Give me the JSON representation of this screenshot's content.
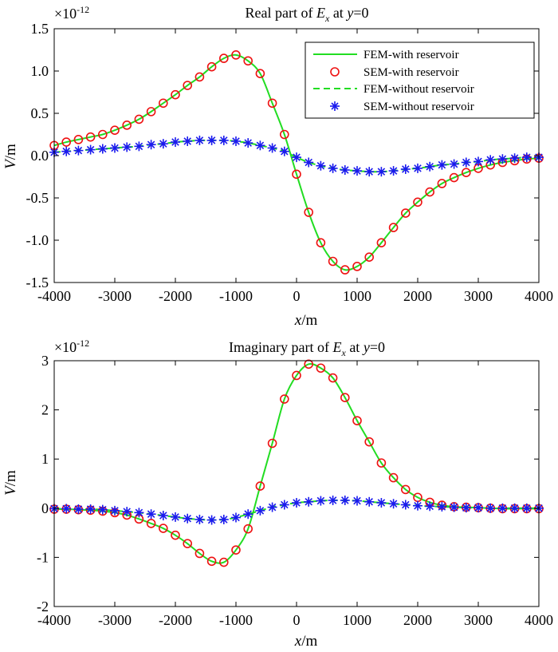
{
  "chart_data": [
    {
      "type": "line",
      "title_parts": {
        "prefix": "Real part of ",
        "var": "E",
        "sub": "x",
        "mid": " at ",
        "yvar": "y",
        "suffix": "=0"
      },
      "exponent": {
        "base": "×10",
        "power": "-12"
      },
      "xlabel_parts": {
        "var": "x",
        "unit": "/m"
      },
      "ylabel_parts": {
        "var": "V",
        "unit": "/m"
      },
      "xlim": [
        -4000,
        4000
      ],
      "ylim": [
        -1.5,
        1.5
      ],
      "xticks": [
        -4000,
        -3000,
        -2000,
        -1000,
        0,
        1000,
        2000,
        3000,
        4000
      ],
      "xtick_labels": [
        "-4000",
        "-3000",
        "-2000",
        "-1000",
        "0",
        "1000",
        "2000",
        "3000",
        "4000"
      ],
      "yticks": [
        -1.5,
        -1.0,
        -0.5,
        0.0,
        0.5,
        1.0,
        1.5
      ],
      "ytick_labels": [
        "-1.5",
        "-1.0",
        "-0.5",
        "0.0",
        "0.5",
        "1.0",
        "1.5"
      ],
      "legend": {
        "placement": "top-right",
        "entries": [
          {
            "label": "FEM-with reservoir",
            "style": "solid-line",
            "color": "#22dd22"
          },
          {
            "label": "SEM-with reservoir",
            "style": "circle",
            "color": "#ee1111"
          },
          {
            "label": "FEM-without reservoir",
            "style": "dashed-line",
            "color": "#22dd22"
          },
          {
            "label": "SEM-without reservoir",
            "style": "asterisk",
            "color": "#1a1aee"
          }
        ]
      },
      "series": [
        {
          "name": "SEM-with reservoir",
          "x": [
            -4000,
            -3800,
            -3600,
            -3400,
            -3200,
            -3000,
            -2800,
            -2600,
            -2400,
            -2200,
            -2000,
            -1800,
            -1600,
            -1400,
            -1200,
            -1000,
            -800,
            -600,
            -400,
            -200,
            0,
            200,
            400,
            600,
            800,
            1000,
            1200,
            1400,
            1600,
            1800,
            2000,
            2200,
            2400,
            2600,
            2800,
            3000,
            3200,
            3400,
            3600,
            3800,
            4000
          ],
          "values": [
            0.12,
            0.16,
            0.19,
            0.22,
            0.25,
            0.3,
            0.36,
            0.43,
            0.52,
            0.62,
            0.72,
            0.83,
            0.93,
            1.05,
            1.15,
            1.19,
            1.12,
            0.97,
            0.62,
            0.25,
            -0.22,
            -0.67,
            -1.03,
            -1.25,
            -1.35,
            -1.31,
            -1.2,
            -1.03,
            -0.85,
            -0.68,
            -0.55,
            -0.43,
            -0.33,
            -0.26,
            -0.2,
            -0.15,
            -0.11,
            -0.08,
            -0.06,
            -0.04,
            -0.03
          ]
        },
        {
          "name": "SEM-without reservoir",
          "x": [
            -4000,
            -3800,
            -3600,
            -3400,
            -3200,
            -3000,
            -2800,
            -2600,
            -2400,
            -2200,
            -2000,
            -1800,
            -1600,
            -1400,
            -1200,
            -1000,
            -800,
            -600,
            -400,
            -200,
            0,
            200,
            400,
            600,
            800,
            1000,
            1200,
            1400,
            1600,
            1800,
            2000,
            2200,
            2400,
            2600,
            2800,
            3000,
            3200,
            3400,
            3600,
            3800,
            4000
          ],
          "values": [
            0.04,
            0.05,
            0.06,
            0.07,
            0.08,
            0.09,
            0.1,
            0.11,
            0.13,
            0.14,
            0.16,
            0.17,
            0.18,
            0.18,
            0.18,
            0.17,
            0.15,
            0.12,
            0.09,
            0.05,
            -0.02,
            -0.08,
            -0.12,
            -0.15,
            -0.17,
            -0.18,
            -0.19,
            -0.19,
            -0.18,
            -0.16,
            -0.15,
            -0.13,
            -0.11,
            -0.1,
            -0.08,
            -0.07,
            -0.05,
            -0.04,
            -0.03,
            -0.02,
            -0.02
          ]
        }
      ]
    },
    {
      "type": "line",
      "title_parts": {
        "prefix": "Imaginary part of ",
        "var": "E",
        "sub": "x",
        "mid": " at ",
        "yvar": "y",
        "suffix": "=0"
      },
      "exponent": {
        "base": "×10",
        "power": "-12"
      },
      "xlabel_parts": {
        "var": "x",
        "unit": "/m"
      },
      "ylabel_parts": {
        "var": "V",
        "unit": "/m"
      },
      "xlim": [
        -4000,
        4000
      ],
      "ylim": [
        -2,
        3
      ],
      "xticks": [
        -4000,
        -3000,
        -2000,
        -1000,
        0,
        1000,
        2000,
        3000,
        4000
      ],
      "xtick_labels": [
        "-4000",
        "-3000",
        "-2000",
        "-1000",
        "0",
        "1000",
        "2000",
        "3000",
        "4000"
      ],
      "yticks": [
        -2,
        -1,
        0,
        1,
        2,
        3
      ],
      "ytick_labels": [
        "-2",
        "-1",
        "0",
        "1",
        "2",
        "3"
      ],
      "series": [
        {
          "name": "SEM-with reservoir",
          "x": [
            -4000,
            -3800,
            -3600,
            -3400,
            -3200,
            -3000,
            -2800,
            -2600,
            -2400,
            -2200,
            -2000,
            -1800,
            -1600,
            -1400,
            -1200,
            -1000,
            -800,
            -600,
            -400,
            -200,
            0,
            200,
            400,
            600,
            800,
            1000,
            1200,
            1400,
            1600,
            1800,
            2000,
            2200,
            2400,
            2600,
            2800,
            3000,
            3200,
            3400,
            3600,
            3800,
            4000
          ],
          "values": [
            -0.02,
            -0.02,
            -0.03,
            -0.04,
            -0.06,
            -0.09,
            -0.14,
            -0.22,
            -0.31,
            -0.41,
            -0.55,
            -0.72,
            -0.92,
            -1.08,
            -1.1,
            -0.85,
            -0.42,
            0.45,
            1.32,
            2.22,
            2.7,
            2.93,
            2.85,
            2.65,
            2.25,
            1.78,
            1.35,
            0.92,
            0.62,
            0.38,
            0.22,
            0.12,
            0.06,
            0.03,
            0.02,
            0.01,
            0.0,
            -0.01,
            -0.01,
            -0.01,
            -0.01
          ]
        },
        {
          "name": "SEM-without reservoir",
          "x": [
            -4000,
            -3800,
            -3600,
            -3400,
            -3200,
            -3000,
            -2800,
            -2600,
            -2400,
            -2200,
            -2000,
            -1800,
            -1600,
            -1400,
            -1200,
            -1000,
            -800,
            -600,
            -400,
            -200,
            0,
            200,
            400,
            600,
            800,
            1000,
            1200,
            1400,
            1600,
            1800,
            2000,
            2200,
            2400,
            2600,
            2800,
            3000,
            3200,
            3400,
            3600,
            3800,
            4000
          ],
          "values": [
            -0.01,
            -0.01,
            -0.02,
            -0.02,
            -0.03,
            -0.05,
            -0.07,
            -0.09,
            -0.12,
            -0.15,
            -0.18,
            -0.21,
            -0.23,
            -0.24,
            -0.23,
            -0.19,
            -0.12,
            -0.05,
            0.02,
            0.07,
            0.11,
            0.13,
            0.15,
            0.16,
            0.16,
            0.15,
            0.13,
            0.11,
            0.09,
            0.07,
            0.05,
            0.04,
            0.03,
            0.02,
            0.01,
            0.01,
            0.0,
            0.0,
            0.0,
            0.0,
            0.0
          ]
        }
      ]
    }
  ]
}
